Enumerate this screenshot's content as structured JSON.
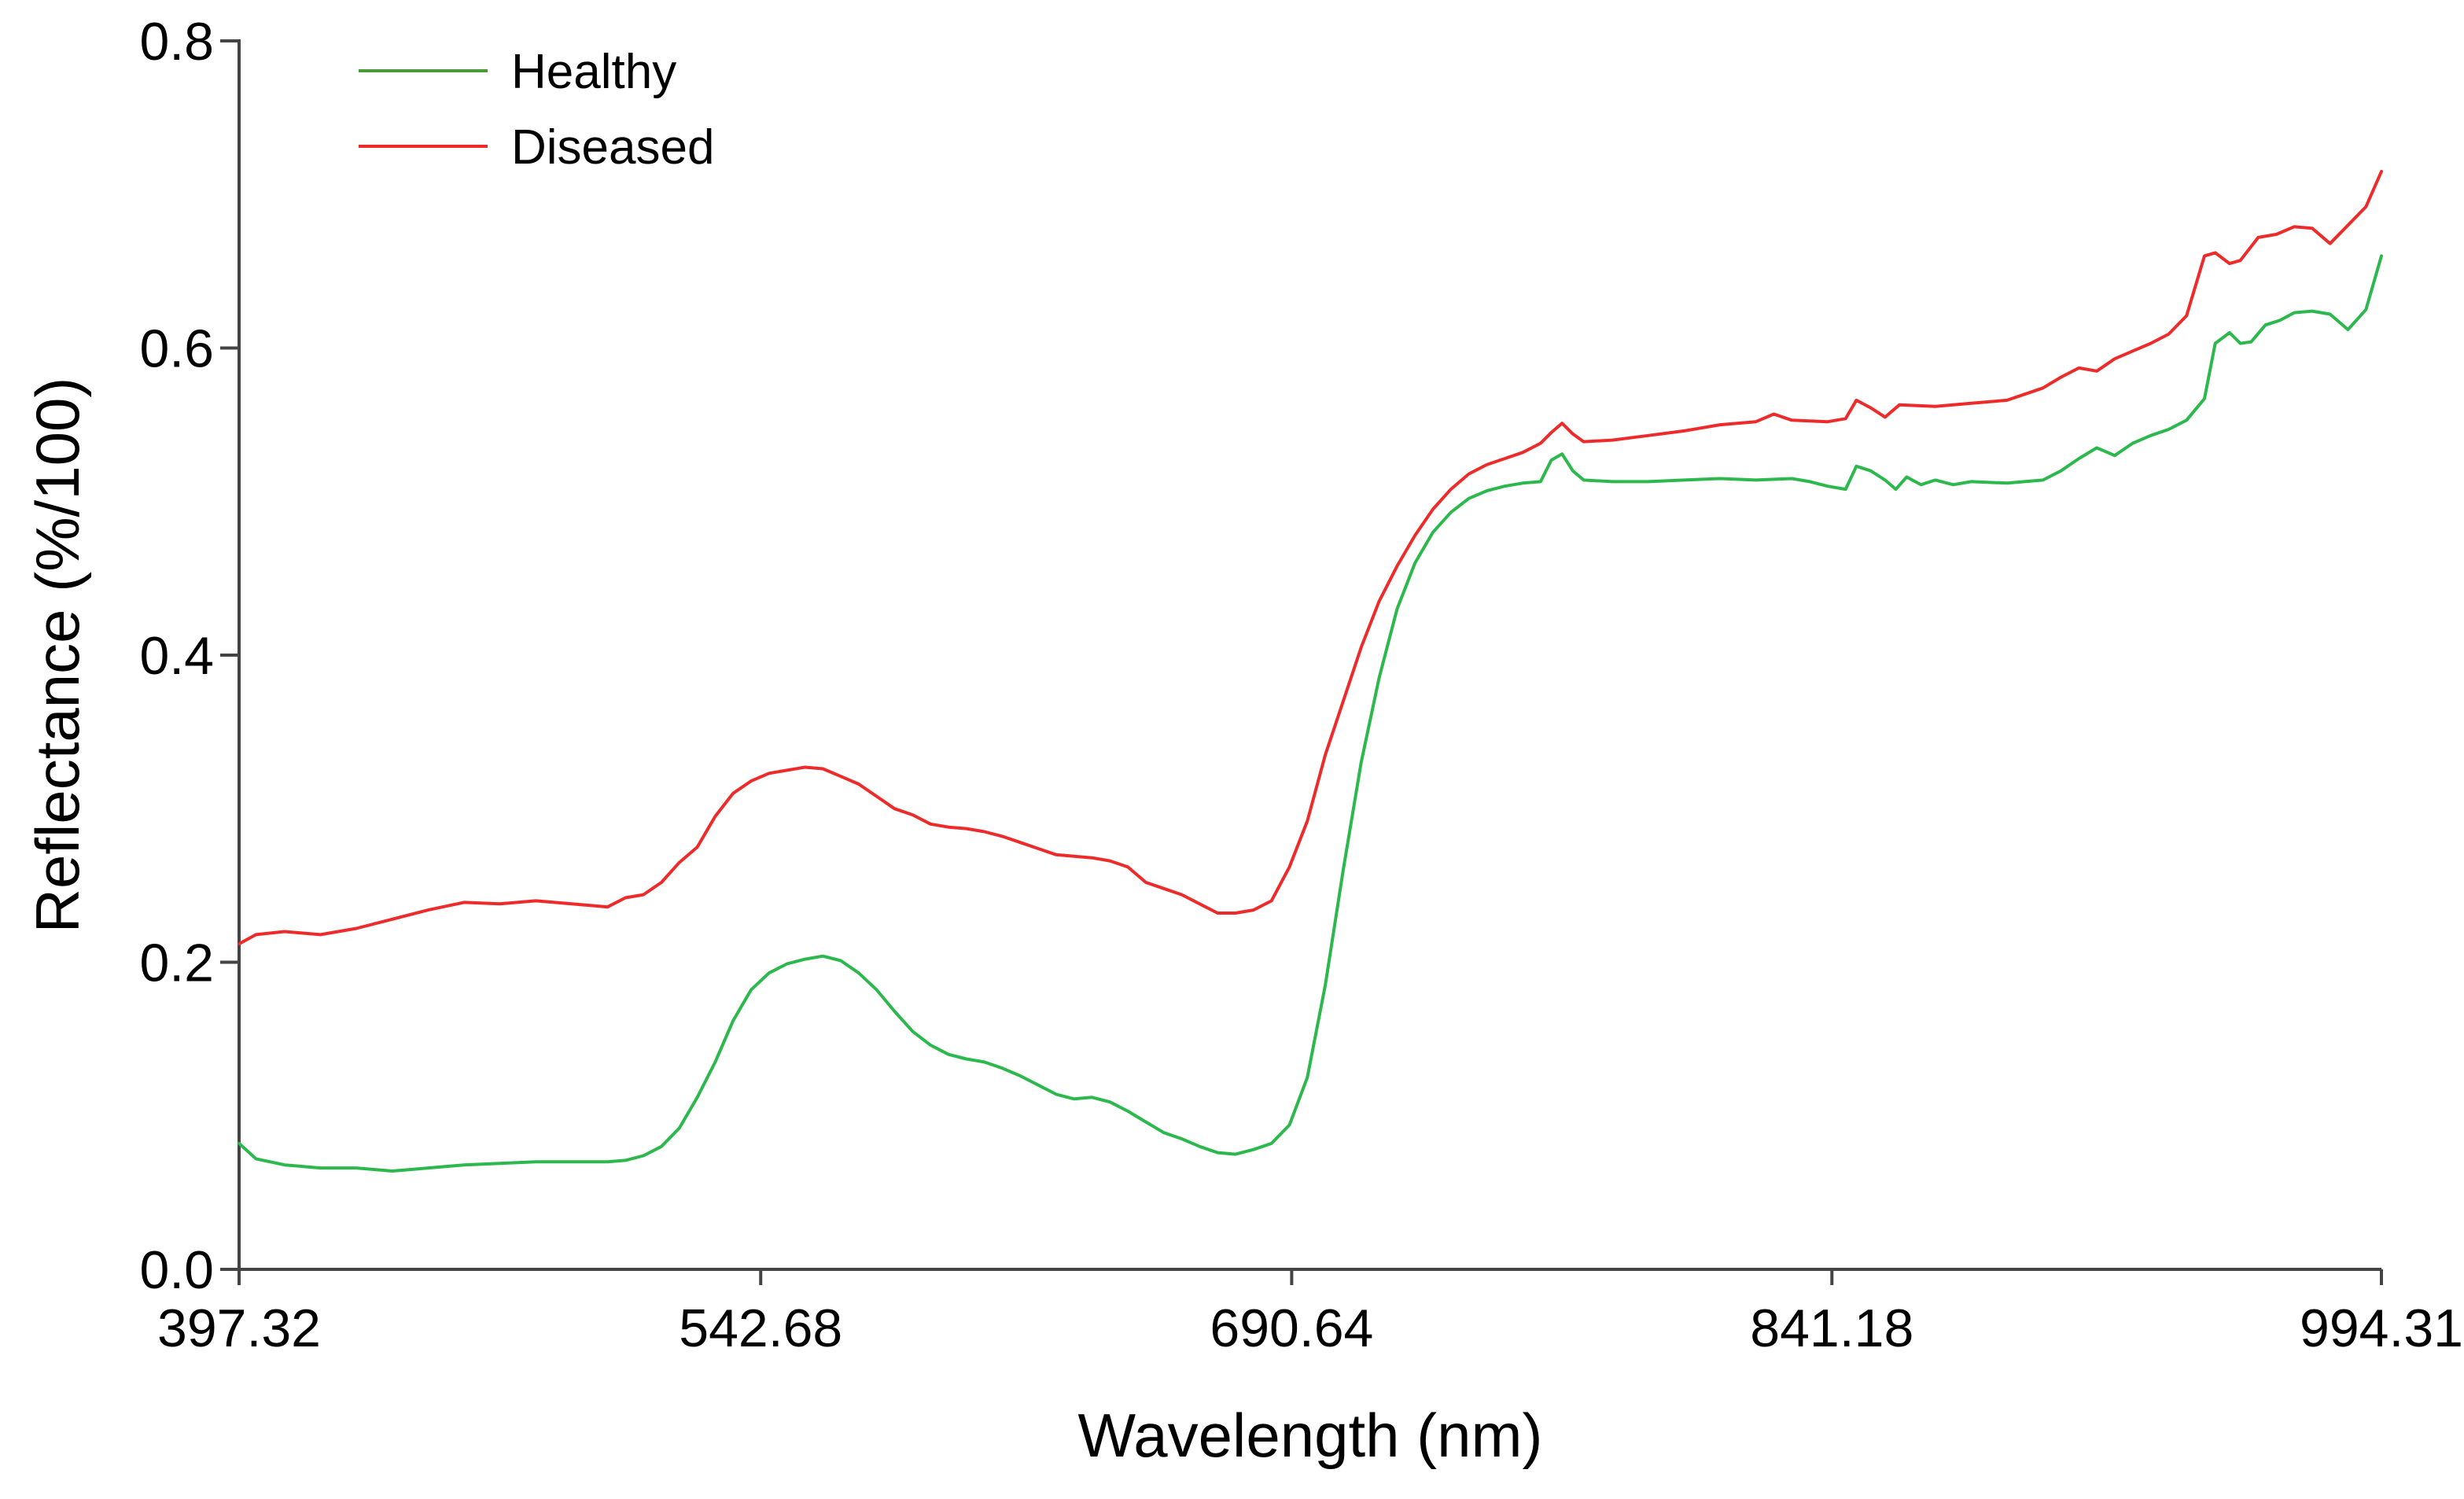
{
  "chart_data": {
    "type": "line",
    "title": "",
    "xlabel": "Wavelength (nm)",
    "ylabel": "Reflectance (%/100)",
    "xlim": [
      397.32,
      994.31
    ],
    "ylim": [
      0.0,
      0.8
    ],
    "xticks": [
      397.32,
      542.68,
      690.64,
      841.18,
      994.31
    ],
    "xtick_labels": [
      "397.32",
      "542.68",
      "690.64",
      "841.18",
      "994.31"
    ],
    "yticks": [
      0.0,
      0.2,
      0.4,
      0.6,
      0.8
    ],
    "ytick_labels": [
      "0.0",
      "0.2",
      "0.4",
      "0.6",
      "0.8"
    ],
    "grid": false,
    "legend_position": "top-left",
    "series": [
      {
        "name": "Healthy",
        "color": "#2db84d",
        "legend_color": "#4a9a3a",
        "points": [
          [
            397.32,
            0.082
          ],
          [
            402,
            0.072
          ],
          [
            410,
            0.068
          ],
          [
            420,
            0.066
          ],
          [
            430,
            0.066
          ],
          [
            440,
            0.064
          ],
          [
            450,
            0.066
          ],
          [
            460,
            0.068
          ],
          [
            470,
            0.069
          ],
          [
            480,
            0.07
          ],
          [
            490,
            0.07
          ],
          [
            500,
            0.07
          ],
          [
            505,
            0.071
          ],
          [
            510,
            0.074
          ],
          [
            515,
            0.08
          ],
          [
            520,
            0.092
          ],
          [
            525,
            0.112
          ],
          [
            530,
            0.135
          ],
          [
            535,
            0.162
          ],
          [
            540,
            0.182
          ],
          [
            545,
            0.193
          ],
          [
            550,
            0.199
          ],
          [
            555,
            0.202
          ],
          [
            560,
            0.204
          ],
          [
            565,
            0.201
          ],
          [
            570,
            0.193
          ],
          [
            575,
            0.182
          ],
          [
            580,
            0.168
          ],
          [
            585,
            0.155
          ],
          [
            590,
            0.146
          ],
          [
            595,
            0.14
          ],
          [
            600,
            0.137
          ],
          [
            605,
            0.135
          ],
          [
            610,
            0.131
          ],
          [
            615,
            0.126
          ],
          [
            620,
            0.12
          ],
          [
            625,
            0.114
          ],
          [
            630,
            0.111
          ],
          [
            635,
            0.112
          ],
          [
            640,
            0.109
          ],
          [
            645,
            0.103
          ],
          [
            650,
            0.096
          ],
          [
            655,
            0.089
          ],
          [
            660,
            0.085
          ],
          [
            665,
            0.08
          ],
          [
            670,
            0.076
          ],
          [
            675,
            0.075
          ],
          [
            680,
            0.078
          ],
          [
            685,
            0.082
          ],
          [
            690,
            0.094
          ],
          [
            695,
            0.125
          ],
          [
            700,
            0.185
          ],
          [
            705,
            0.26
          ],
          [
            710,
            0.33
          ],
          [
            715,
            0.385
          ],
          [
            720,
            0.43
          ],
          [
            725,
            0.46
          ],
          [
            730,
            0.48
          ],
          [
            735,
            0.493
          ],
          [
            740,
            0.502
          ],
          [
            745,
            0.507
          ],
          [
            750,
            0.51
          ],
          [
            755,
            0.512
          ],
          [
            760,
            0.513
          ],
          [
            763,
            0.527
          ],
          [
            766,
            0.531
          ],
          [
            769,
            0.52
          ],
          [
            772,
            0.514
          ],
          [
            780,
            0.513
          ],
          [
            790,
            0.513
          ],
          [
            800,
            0.514
          ],
          [
            810,
            0.515
          ],
          [
            820,
            0.514
          ],
          [
            830,
            0.515
          ],
          [
            835,
            0.513
          ],
          [
            840,
            0.51
          ],
          [
            845,
            0.508
          ],
          [
            848,
            0.523
          ],
          [
            852,
            0.52
          ],
          [
            856,
            0.514
          ],
          [
            859,
            0.508
          ],
          [
            862,
            0.516
          ],
          [
            866,
            0.511
          ],
          [
            870,
            0.514
          ],
          [
            875,
            0.511
          ],
          [
            880,
            0.513
          ],
          [
            890,
            0.512
          ],
          [
            900,
            0.514
          ],
          [
            905,
            0.52
          ],
          [
            910,
            0.528
          ],
          [
            915,
            0.535
          ],
          [
            920,
            0.53
          ],
          [
            925,
            0.538
          ],
          [
            930,
            0.543
          ],
          [
            935,
            0.547
          ],
          [
            940,
            0.553
          ],
          [
            945,
            0.567
          ],
          [
            948,
            0.603
          ],
          [
            952,
            0.61
          ],
          [
            955,
            0.603
          ],
          [
            958,
            0.604
          ],
          [
            962,
            0.615
          ],
          [
            966,
            0.618
          ],
          [
            970,
            0.623
          ],
          [
            975,
            0.624
          ],
          [
            980,
            0.622
          ],
          [
            985,
            0.612
          ],
          [
            990,
            0.625
          ],
          [
            994.31,
            0.66
          ]
        ]
      },
      {
        "name": "Diseased",
        "color": "#ee2b2b",
        "legend_color": "#ee2b2b",
        "points": [
          [
            397.32,
            0.212
          ],
          [
            402,
            0.218
          ],
          [
            410,
            0.22
          ],
          [
            420,
            0.218
          ],
          [
            430,
            0.222
          ],
          [
            440,
            0.228
          ],
          [
            450,
            0.234
          ],
          [
            460,
            0.239
          ],
          [
            470,
            0.238
          ],
          [
            480,
            0.24
          ],
          [
            490,
            0.238
          ],
          [
            500,
            0.236
          ],
          [
            505,
            0.242
          ],
          [
            510,
            0.244
          ],
          [
            515,
            0.252
          ],
          [
            520,
            0.265
          ],
          [
            525,
            0.275
          ],
          [
            530,
            0.295
          ],
          [
            535,
            0.31
          ],
          [
            540,
            0.318
          ],
          [
            545,
            0.323
          ],
          [
            550,
            0.325
          ],
          [
            555,
            0.327
          ],
          [
            560,
            0.326
          ],
          [
            565,
            0.321
          ],
          [
            570,
            0.316
          ],
          [
            575,
            0.308
          ],
          [
            580,
            0.3
          ],
          [
            585,
            0.296
          ],
          [
            590,
            0.29
          ],
          [
            595,
            0.288
          ],
          [
            600,
            0.287
          ],
          [
            605,
            0.285
          ],
          [
            610,
            0.282
          ],
          [
            615,
            0.278
          ],
          [
            620,
            0.274
          ],
          [
            625,
            0.27
          ],
          [
            630,
            0.269
          ],
          [
            635,
            0.268
          ],
          [
            640,
            0.266
          ],
          [
            645,
            0.262
          ],
          [
            650,
            0.252
          ],
          [
            655,
            0.248
          ],
          [
            660,
            0.244
          ],
          [
            665,
            0.238
          ],
          [
            670,
            0.232
          ],
          [
            675,
            0.232
          ],
          [
            680,
            0.234
          ],
          [
            685,
            0.24
          ],
          [
            690,
            0.262
          ],
          [
            695,
            0.292
          ],
          [
            700,
            0.335
          ],
          [
            705,
            0.37
          ],
          [
            710,
            0.405
          ],
          [
            715,
            0.435
          ],
          [
            720,
            0.458
          ],
          [
            725,
            0.478
          ],
          [
            730,
            0.495
          ],
          [
            735,
            0.508
          ],
          [
            740,
            0.518
          ],
          [
            745,
            0.524
          ],
          [
            750,
            0.528
          ],
          [
            755,
            0.532
          ],
          [
            760,
            0.538
          ],
          [
            763,
            0.545
          ],
          [
            766,
            0.551
          ],
          [
            769,
            0.544
          ],
          [
            772,
            0.539
          ],
          [
            780,
            0.54
          ],
          [
            790,
            0.543
          ],
          [
            800,
            0.546
          ],
          [
            810,
            0.55
          ],
          [
            820,
            0.552
          ],
          [
            825,
            0.557
          ],
          [
            830,
            0.553
          ],
          [
            840,
            0.552
          ],
          [
            845,
            0.554
          ],
          [
            848,
            0.566
          ],
          [
            852,
            0.561
          ],
          [
            856,
            0.555
          ],
          [
            860,
            0.563
          ],
          [
            870,
            0.562
          ],
          [
            880,
            0.564
          ],
          [
            890,
            0.566
          ],
          [
            900,
            0.574
          ],
          [
            905,
            0.581
          ],
          [
            910,
            0.587
          ],
          [
            915,
            0.585
          ],
          [
            920,
            0.593
          ],
          [
            925,
            0.598
          ],
          [
            930,
            0.603
          ],
          [
            935,
            0.609
          ],
          [
            940,
            0.621
          ],
          [
            945,
            0.66
          ],
          [
            948,
            0.662
          ],
          [
            952,
            0.655
          ],
          [
            955,
            0.657
          ],
          [
            960,
            0.672
          ],
          [
            965,
            0.674
          ],
          [
            970,
            0.679
          ],
          [
            975,
            0.678
          ],
          [
            980,
            0.668
          ],
          [
            985,
            0.68
          ],
          [
            990,
            0.692
          ],
          [
            994.31,
            0.715
          ]
        ]
      }
    ]
  }
}
